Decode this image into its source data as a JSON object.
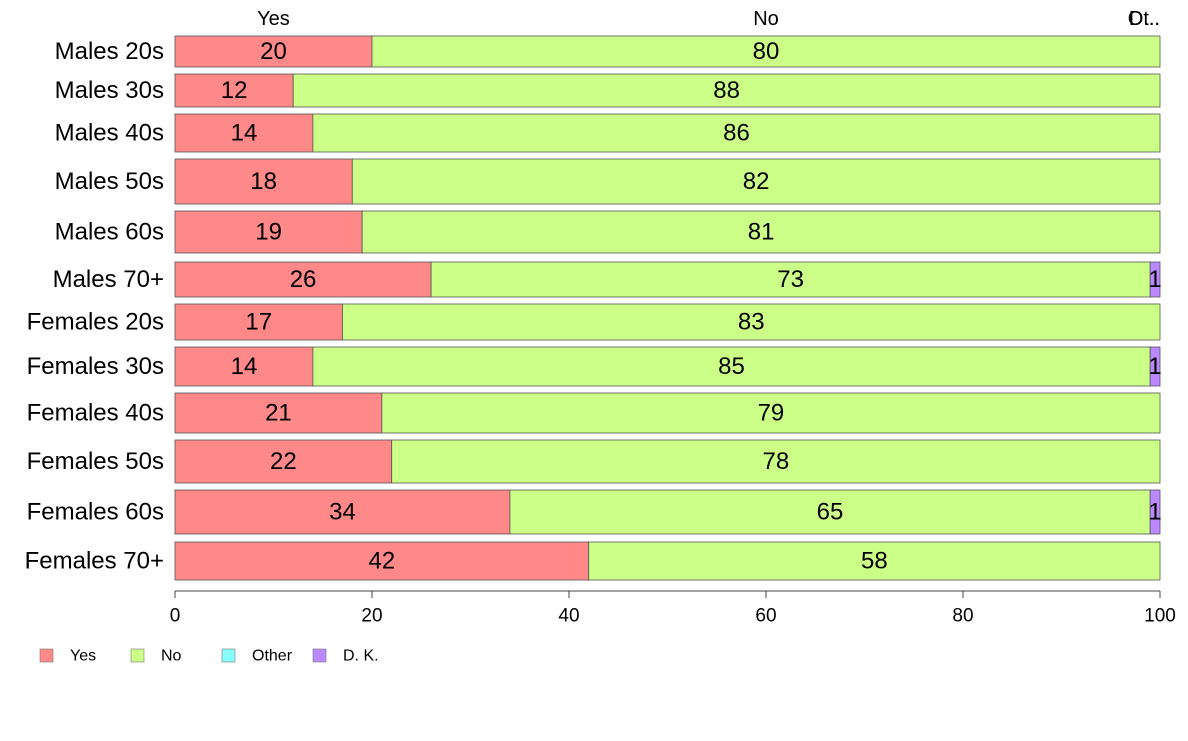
{
  "chart_data": {
    "type": "bar",
    "orientation": "horizontal",
    "stacked": true,
    "categories": [
      "Males 20s",
      "Males 30s",
      "Males 40s",
      "Males 50s",
      "Males 60s",
      "Males 70+",
      "Females 20s",
      "Females 30s",
      "Females 40s",
      "Females 50s",
      "Females 60s",
      "Females 70+"
    ],
    "series": [
      {
        "name": "Yes",
        "color": "#ff8888",
        "values": [
          20,
          12,
          14,
          18,
          19,
          26,
          17,
          14,
          21,
          22,
          34,
          42
        ]
      },
      {
        "name": "No",
        "color": "#ccff88",
        "values": [
          80,
          88,
          86,
          82,
          81,
          73,
          83,
          85,
          79,
          78,
          65,
          58
        ]
      },
      {
        "name": "Other",
        "color": "#88ffff",
        "values": [
          0,
          0,
          0,
          0,
          0,
          0,
          0,
          0,
          0,
          0,
          0,
          0
        ]
      },
      {
        "name": "D. K.",
        "color": "#bb88ff",
        "values": [
          0,
          0,
          0,
          0,
          0,
          1,
          0,
          1,
          0,
          0,
          1,
          0
        ]
      }
    ],
    "value_labels": [
      [
        "20",
        "80",
        ""
      ],
      [
        "12",
        "88",
        ""
      ],
      [
        "14",
        "86",
        ""
      ],
      [
        "18",
        "82",
        ""
      ],
      [
        "19",
        "81",
        ""
      ],
      [
        "26",
        "73",
        "1"
      ],
      [
        "17",
        "83",
        ""
      ],
      [
        "14",
        "85",
        "1"
      ],
      [
        "21",
        "79",
        ""
      ],
      [
        "22",
        "78",
        ""
      ],
      [
        "34",
        "65",
        "1"
      ],
      [
        "42",
        "58",
        ""
      ]
    ],
    "top_labels": [
      "Yes",
      "No",
      "Ot..",
      "D..."
    ],
    "xlim": [
      0,
      100
    ],
    "x_ticks": [
      "0",
      "20",
      "40",
      "60",
      "80",
      "100"
    ],
    "legend_position": "bottom-left",
    "grid": false,
    "title": "",
    "xlabel": "",
    "ylabel": ""
  }
}
